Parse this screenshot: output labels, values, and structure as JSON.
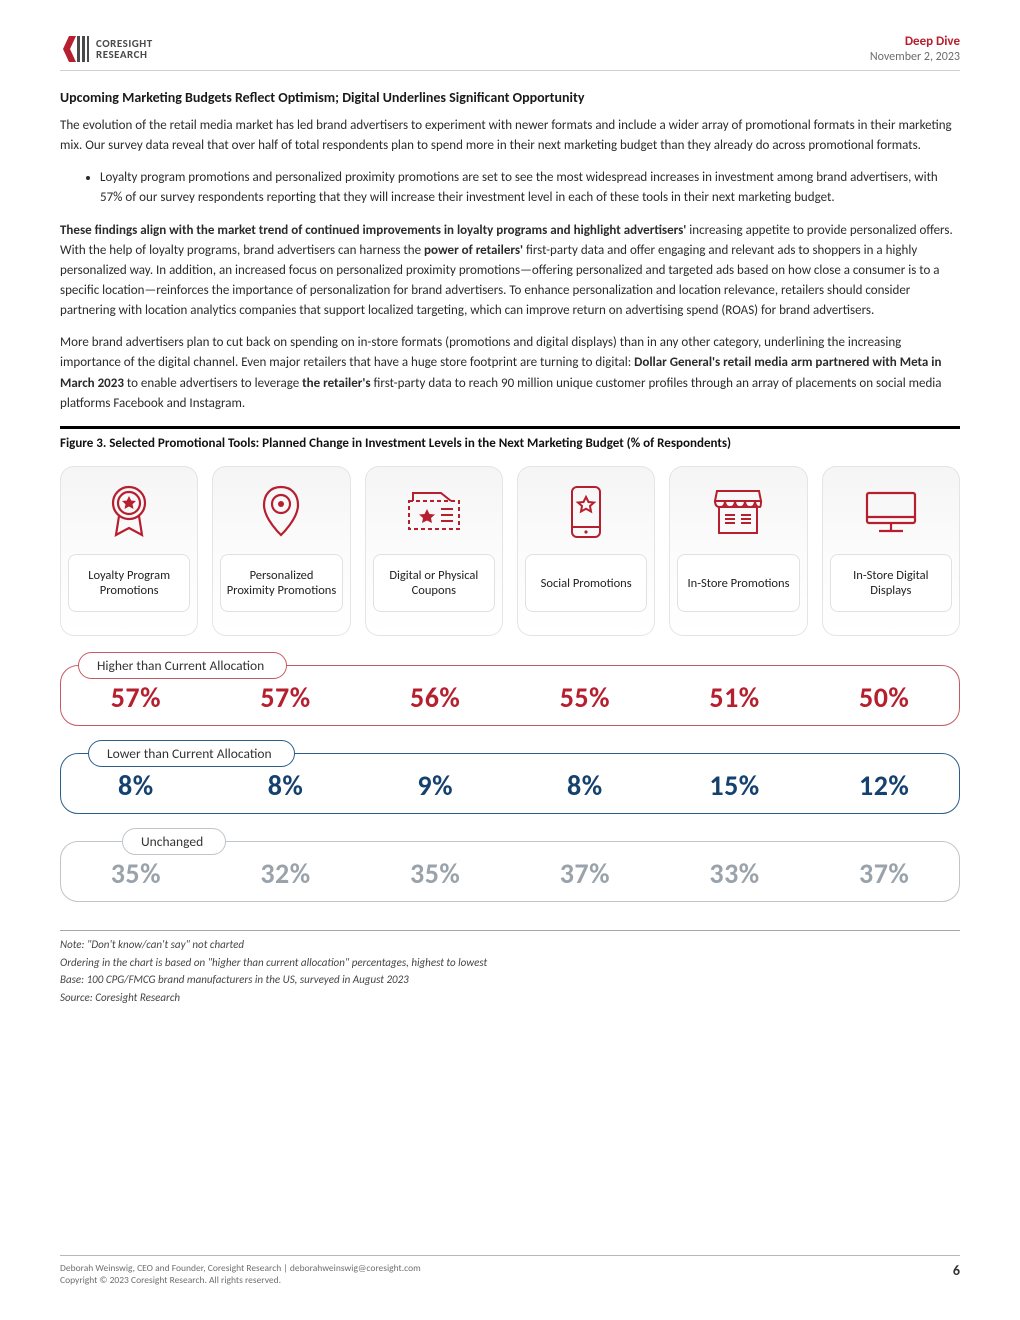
{
  "header": {
    "brand_top": "CORESIGHT",
    "brand_bottom": "RESEARCH",
    "tag": "Deep Dive",
    "date": "November 2, 2023"
  },
  "section_title": "Upcoming Marketing Budgets Reflect Optimism; Digital Underlines Significant Opportunity",
  "para1": "The evolution of the retail media market has led brand advertisers to experiment with newer formats and include a wider array of promotional formats in their marketing mix. Our survey data reveal that over half of total respondents plan to spend more in their next marketing budget than they already do across promotional formats.",
  "bullet1": "Loyalty program promotions and personalized proximity promotions are set to see the most widespread increases in investment among brand advertisers, with 57% of our survey respondents reporting that they will increase their investment level in each of these tools in their next marketing budget.",
  "para2a": "These findings align with the market trend of continued improvements in loyalty programs and highlight advertisers'",
  "para2b": " increasing appetite to provide personalized offers. With the help of loyalty programs, brand advertisers can harness the ",
  "para2c": "power of retailers'",
  "para2d": " first-party data and offer engaging and relevant ads to shoppers in a highly personalized way. In addition, an increased focus on personalized proximity promotions—offering personalized and targeted ads based on how close a consumer is to a specific location—reinforces the importance of personalization for brand advertisers. To enhance personalization and location relevance, retailers should consider partnering with location analytics companies that support localized targeting, which can improve return on advertising spend (ROAS) for brand advertisers.",
  "para3a": "More brand advertisers plan to cut back on spending on in-store formats (promotions and digital displays) than in any other category, underlining the increasing importance of the digital channel. Even major retailers that have a huge store footprint are turning to digital: ",
  "para3b": "Dollar General's retail media arm partnered with Meta in March 2023",
  "para3c": " to enable advertisers to leverage ",
  "para3d": "the retailer's",
  "para3e": " first-party data to reach 90 million unique customer profiles through an array of placements on social media platforms Facebook and Instagram.",
  "figure": {
    "title": "Figure 3. Selected Promotional Tools: Planned Change in Investment Levels in the Next Marketing Budget (% of Respondents)",
    "icon_color": "#b61f2e",
    "card_bg_top": "#f5f5f6",
    "tools": [
      {
        "label": "Loyalty Program Promotions"
      },
      {
        "label": "Personalized Proximity Promotions"
      },
      {
        "label": "Digital or Physical Coupons"
      },
      {
        "label": "Social Promotions"
      },
      {
        "label": "In-Store Promotions"
      },
      {
        "label": "In-Store Digital Displays"
      }
    ],
    "metrics": [
      {
        "label": "Higher than Current Allocation",
        "border_color": "#c65a63",
        "text_color": "#b61f2e",
        "tab_indent": 18,
        "values": [
          "57%",
          "57%",
          "56%",
          "55%",
          "51%",
          "50%"
        ]
      },
      {
        "label": "Lower than Current Allocation",
        "border_color": "#2b5f8b",
        "text_color": "#14416e",
        "tab_indent": 28,
        "values": [
          "8%",
          "8%",
          "9%",
          "8%",
          "15%",
          "12%"
        ]
      },
      {
        "label": "Unchanged",
        "border_color": "#bfc5ca",
        "text_color": "#9aa3ab",
        "tab_indent": 62,
        "values": [
          "35%",
          "32%",
          "35%",
          "37%",
          "33%",
          "37%"
        ]
      }
    ],
    "notes": [
      "Note: \"Don't know/can't say\" not charted",
      "Ordering in the chart is based on \"higher than current allocation\" percentages, highest to lowest",
      "Base: 100 CPG/FMCG brand manufacturers in the US, surveyed in August 2023",
      "Source: Coresight Research"
    ]
  },
  "footer": {
    "line1": "Deborah Weinswig, CEO and Founder, Coresight Research | deborahweinswig@coresight.com",
    "line2": "Copyright © 2023 Coresight Research. All rights reserved.",
    "page": "6"
  }
}
